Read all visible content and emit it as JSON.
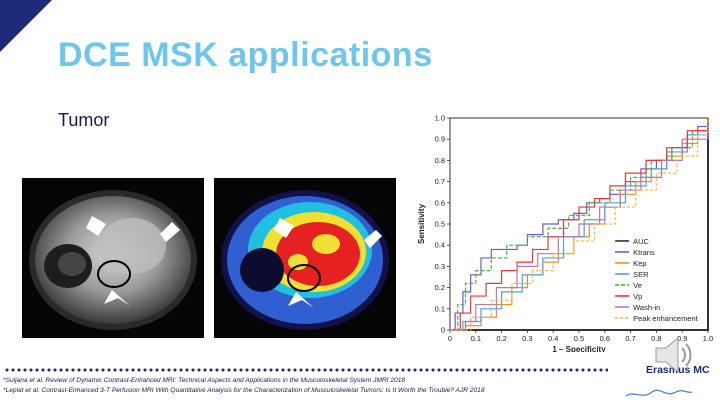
{
  "slide": {
    "title": "DCE MSK applications",
    "subtitle": "Tumor"
  },
  "references": [
    "*Suljana et al. Review of Dynamic Contrast-Enhanced MRI: Technical Aspects and Applications in the Musculoskeletal System JMRI 2018",
    "*Leplat et al. Contrast-Enhanced 3-T Perfusion MRI With Quantitative Analysis for the Characterization of Musculoskeletal Tumors: Is It Worth the Trouble? AJR 2018"
  ],
  "logo": {
    "text": "Erasmus MC"
  },
  "icons": {
    "speaker": "speaker-icon",
    "arrow": "arrowhead-icon"
  },
  "colors": {
    "title": "#6ec6ee",
    "navy": "#1c2a77"
  },
  "chart_data": {
    "type": "line",
    "xlabel": "1 – Specificity",
    "ylabel": "Sensitivity",
    "xlim": [
      0,
      1
    ],
    "ylim": [
      0,
      1
    ],
    "xticks": [
      "0",
      "0.1",
      "0.2",
      "0.3",
      "0.4",
      "0.5",
      "0.6",
      "0.7",
      "0.8",
      "0.9",
      "1.0"
    ],
    "yticks": [
      "0",
      "0.1",
      "0.2",
      "0.3",
      "0.4",
      "0.5",
      "0.6",
      "0.7",
      "0.8",
      "0.9",
      "1.0"
    ],
    "legend_position": "bottom-right",
    "series": [
      {
        "name": "AUC",
        "color": "#333333",
        "dash": "",
        "x": [
          0,
          1
        ],
        "y": [
          0,
          1
        ]
      },
      {
        "name": "Ktrans",
        "color": "#7b55c7",
        "dash": "",
        "x": [
          0,
          0.02,
          0.05,
          0.08,
          0.12,
          0.16,
          0.2,
          0.26,
          0.3,
          0.36,
          0.42,
          0.48,
          0.53,
          0.58,
          0.62,
          0.68,
          0.74,
          0.8,
          0.86,
          0.92,
          0.96,
          1
        ],
        "y": [
          0,
          0.08,
          0.18,
          0.26,
          0.34,
          0.38,
          0.38,
          0.4,
          0.45,
          0.5,
          0.52,
          0.55,
          0.6,
          0.62,
          0.64,
          0.7,
          0.76,
          0.8,
          0.86,
          0.92,
          0.96,
          1
        ]
      },
      {
        "name": "Kep",
        "color": "#f28c28",
        "dash": "",
        "x": [
          0,
          0.06,
          0.12,
          0.18,
          0.24,
          0.3,
          0.36,
          0.42,
          0.48,
          0.54,
          0.6,
          0.66,
          0.72,
          0.78,
          0.84,
          0.9,
          0.96,
          1
        ],
        "y": [
          0,
          0.02,
          0.06,
          0.12,
          0.2,
          0.26,
          0.32,
          0.36,
          0.44,
          0.5,
          0.58,
          0.64,
          0.7,
          0.76,
          0.82,
          0.88,
          0.94,
          1
        ]
      },
      {
        "name": "SER",
        "color": "#4aa3df",
        "dash": "",
        "x": [
          0,
          0.06,
          0.12,
          0.2,
          0.28,
          0.36,
          0.44,
          0.52,
          0.6,
          0.68,
          0.76,
          0.84,
          0.92,
          1
        ],
        "y": [
          0,
          0.04,
          0.1,
          0.18,
          0.26,
          0.34,
          0.44,
          0.52,
          0.6,
          0.68,
          0.76,
          0.84,
          0.92,
          1
        ]
      },
      {
        "name": "Ve",
        "color": "#4caf50",
        "dash": "4,2",
        "x": [
          0,
          0.03,
          0.06,
          0.1,
          0.16,
          0.22,
          0.3,
          0.38,
          0.46,
          0.54,
          0.62,
          0.7,
          0.78,
          0.86,
          0.94,
          1
        ],
        "y": [
          0,
          0.12,
          0.22,
          0.28,
          0.34,
          0.4,
          0.44,
          0.48,
          0.54,
          0.6,
          0.66,
          0.72,
          0.8,
          0.86,
          0.94,
          1
        ]
      },
      {
        "name": "Vp",
        "color": "#e53935",
        "dash": "",
        "x": [
          0,
          0.04,
          0.08,
          0.14,
          0.2,
          0.26,
          0.32,
          0.38,
          0.44,
          0.5,
          0.56,
          0.62,
          0.68,
          0.76,
          0.84,
          0.92,
          1
        ],
        "y": [
          0,
          0.08,
          0.16,
          0.22,
          0.28,
          0.32,
          0.38,
          0.44,
          0.52,
          0.58,
          0.62,
          0.68,
          0.74,
          0.8,
          0.86,
          0.94,
          1
        ]
      },
      {
        "name": "Wash-in",
        "color": "#b07ab0",
        "dash": "",
        "x": [
          0,
          0.05,
          0.1,
          0.18,
          0.26,
          0.34,
          0.42,
          0.5,
          0.58,
          0.66,
          0.74,
          0.82,
          0.9,
          1
        ],
        "y": [
          0,
          0.04,
          0.12,
          0.2,
          0.3,
          0.36,
          0.44,
          0.5,
          0.58,
          0.66,
          0.72,
          0.8,
          0.9,
          1
        ]
      },
      {
        "name": "Peak enhancement",
        "color": "#f5b942",
        "dash": "3,2",
        "x": [
          0,
          0.08,
          0.16,
          0.24,
          0.32,
          0.4,
          0.48,
          0.56,
          0.64,
          0.72,
          0.8,
          0.88,
          0.96,
          1
        ],
        "y": [
          0,
          0.06,
          0.14,
          0.22,
          0.28,
          0.36,
          0.42,
          0.5,
          0.58,
          0.66,
          0.74,
          0.82,
          0.92,
          1
        ]
      }
    ]
  }
}
